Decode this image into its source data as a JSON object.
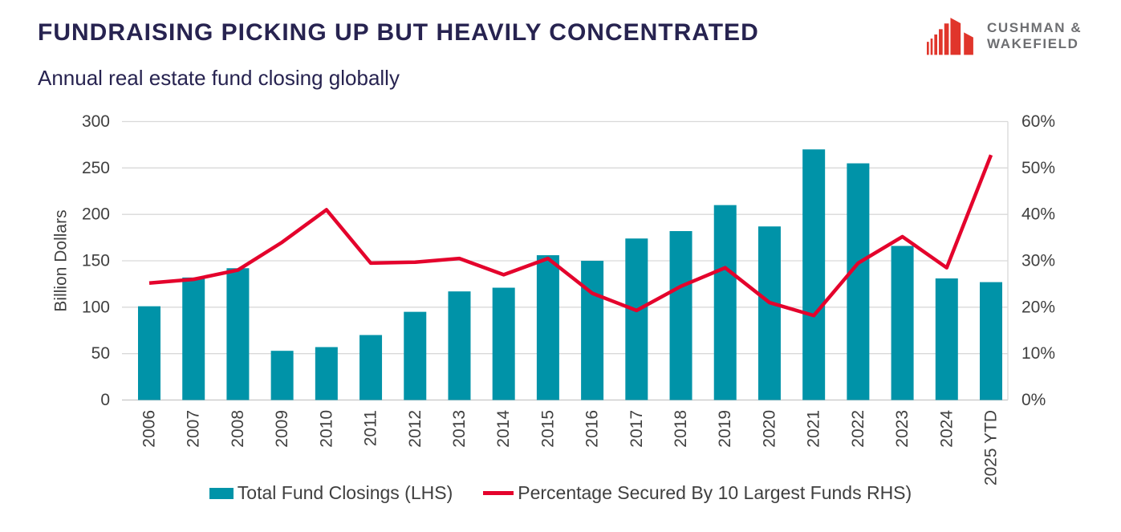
{
  "header": {
    "title": "FUNDRAISING PICKING UP BUT HEAVILY CONCENTRATED",
    "subtitle": "Annual real estate fund closing globally"
  },
  "logo": {
    "line1": "CUSHMAN &",
    "line2": "WAKEFIELD",
    "icon": "red-building-bars",
    "red": "#E0352B",
    "text_color": "#6D6E71"
  },
  "chart_data": {
    "type": "bar+line",
    "title": "FUNDRAISING PICKING UP BUT HEAVILY CONCENTRATED",
    "subtitle": "Annual real estate fund closing globally",
    "categories": [
      "2006",
      "2007",
      "2008",
      "2009",
      "2010",
      "2011",
      "2012",
      "2013",
      "2014",
      "2015",
      "2016",
      "2017",
      "2018",
      "2019",
      "2020",
      "2021",
      "2022",
      "2023",
      "2024",
      "2025 YTD"
    ],
    "series": [
      {
        "name": "Total Fund Closings (LHS)",
        "type": "bar",
        "axis": "left",
        "color": "#0093A8",
        "values": [
          101,
          132,
          142,
          53,
          57,
          70,
          95,
          117,
          121,
          156,
          150,
          174,
          182,
          210,
          187,
          270,
          255,
          166,
          131,
          127
        ]
      },
      {
        "name": "Percentage Secured By 10 Largest Funds RHS)",
        "type": "line",
        "axis": "right",
        "color": "#E4032C",
        "values": [
          25.2,
          26,
          28,
          34,
          41,
          29.5,
          29.7,
          30.5,
          27,
          30.5,
          23,
          19.3,
          24.5,
          28.5,
          21,
          18.2,
          29.5,
          35.2,
          28.5,
          52.8
        ]
      }
    ],
    "left_axis": {
      "title": "Billion Dollars",
      "min": 0,
      "max": 300,
      "tick_values": [
        0,
        50,
        100,
        150,
        200,
        250,
        300
      ],
      "tick_labels": [
        "0",
        "50",
        "100",
        "150",
        "200",
        "250",
        "300"
      ]
    },
    "right_axis": {
      "min": 0,
      "max": 60,
      "tick_values": [
        0,
        10,
        20,
        30,
        40,
        50,
        60
      ],
      "tick_labels": [
        "0%",
        "10%",
        "20%",
        "30%",
        "40%",
        "50%",
        "60%"
      ]
    },
    "grid": true,
    "legend_position": "bottom",
    "x_labels_rotated": true
  },
  "style": {
    "gridline_color": "#D9D9D9",
    "axis_line_color": "#C6C6C6",
    "tick_text_color": "#404040",
    "title_color": "#272350"
  }
}
